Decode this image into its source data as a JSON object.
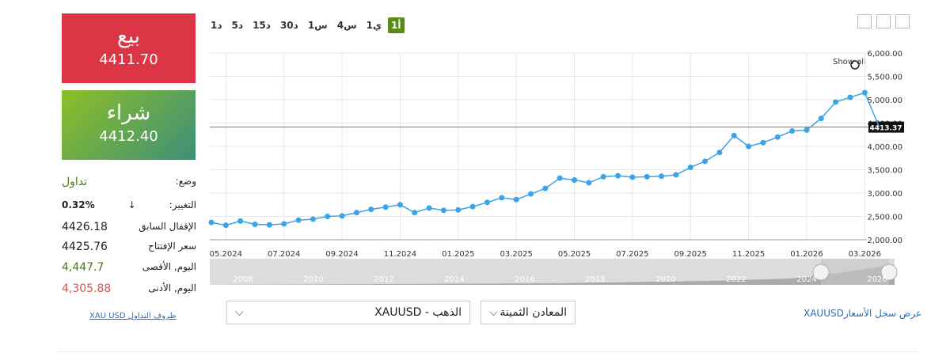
{
  "sell": {
    "label": "بيع",
    "price": "4411.70"
  },
  "buy": {
    "label": "شراء",
    "price": "4412.40"
  },
  "stats": [
    {
      "label": "وضع:",
      "value": "تداول"
    },
    {
      "label": "التغيير:",
      "value": "0.32%"
    },
    {
      "label": "الإقفال السابق",
      "value": "4426.18"
    },
    {
      "label": "سعر الإفتتاح",
      "value": "4425.76"
    },
    {
      "label": "اليوم, الأقصى",
      "value": "4,447.7"
    },
    {
      "label": "اليوم, الأدنى",
      "value": "4,305.88"
    }
  ],
  "conditions_link": "XAU USD ظروف التداول",
  "timeframes": [
    "1أ",
    "1ي",
    "4س",
    "1س",
    "30د",
    "15د",
    "5د",
    "1د"
  ],
  "show_all": "Show all",
  "navigator": [
    "2008",
    "2010",
    "2012",
    "2014",
    "2016",
    "2018",
    "2020",
    "2022",
    "2024",
    "2026"
  ],
  "selects": {
    "group": "المعادن الثمينة",
    "instrument": "XAUUSD - الذهب"
  },
  "history_link": "XAUUSDعرض سجل الأسعار",
  "chart_data": {
    "type": "line",
    "color": "#3ba3e8",
    "grid": true,
    "categories": [
      null,
      "05.2024",
      null,
      null,
      null,
      "07.2024",
      null,
      null,
      null,
      "09.2024",
      null,
      null,
      null,
      "11.2024",
      null,
      null,
      null,
      "01.2025",
      null,
      null,
      null,
      "03.2025",
      null,
      null,
      null,
      "05.2025",
      null,
      null,
      null,
      "07.2025",
      null,
      null,
      null,
      "09.2025",
      null,
      null,
      null,
      "11.2025",
      null,
      null,
      null,
      "01.2026",
      null,
      null,
      null,
      "03.2026",
      null
    ],
    "values": [
      2370,
      2310,
      2400,
      2330,
      2320,
      2340,
      2420,
      2440,
      2500,
      2510,
      2580,
      2650,
      2700,
      2750,
      2580,
      2680,
      2630,
      2640,
      2710,
      2800,
      2900,
      2860,
      2980,
      3100,
      3320,
      3280,
      3220,
      3350,
      3370,
      3340,
      3350,
      3360,
      3390,
      3550,
      3680,
      3870,
      4230,
      4000,
      4080,
      4200,
      4330,
      4350,
      4600,
      4950,
      5050,
      5150,
      4413.37
    ],
    "ylim": [
      2000,
      6000
    ],
    "yticks": [
      {
        "value": 2000,
        "label": "2,000.00"
      },
      {
        "value": 2500,
        "label": "2,500.00"
      },
      {
        "value": 3000,
        "label": "3,000.00"
      },
      {
        "value": 3500,
        "label": "3,500.00"
      },
      {
        "value": 4000,
        "label": "4,000.00"
      },
      {
        "value": 4500,
        "label": "4,500.00"
      },
      {
        "value": 5000,
        "label": "5,000.00"
      },
      {
        "value": 5500,
        "label": "5,500.00"
      },
      {
        "value": 6000,
        "label": "6,000.00"
      }
    ],
    "last_price": 4413.37
  }
}
